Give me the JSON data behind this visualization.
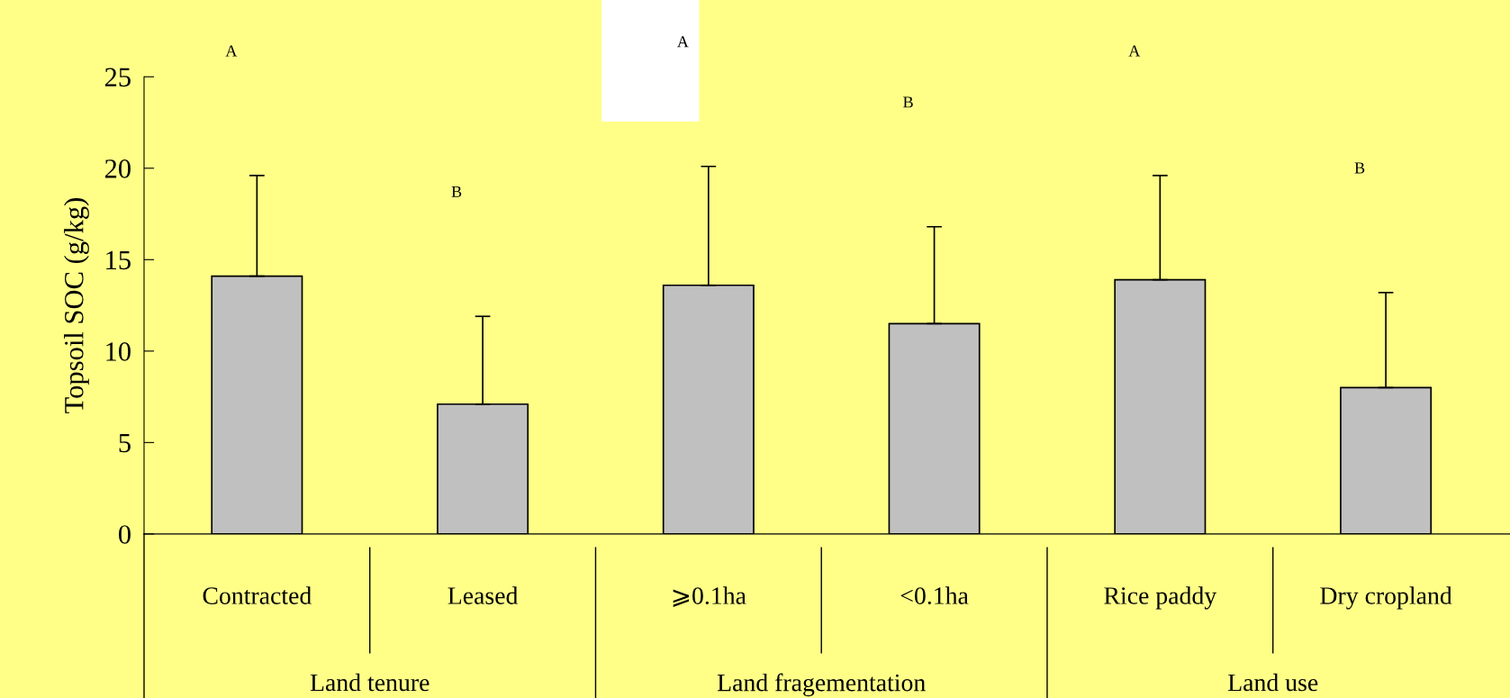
{
  "chart_data": {
    "type": "bar",
    "ylabel": "Topsoil SOC (g/kg)",
    "categories": [
      "Contracted",
      "Leased",
      "⩾0.1ha",
      "<0.1ha",
      "Rice paddy",
      "Dry cropland"
    ],
    "values": [
      14.1,
      7.1,
      13.6,
      11.5,
      13.9,
      8.0
    ],
    "errors": [
      [
        14.1,
        19.6
      ],
      [
        7.1,
        11.9
      ],
      [
        13.6,
        20.1
      ],
      [
        11.5,
        16.8
      ],
      [
        13.9,
        19.6
      ],
      [
        8.0,
        13.2
      ]
    ],
    "color": "#c0c0c0",
    "ylim": [
      0,
      25
    ],
    "yticks": [
      0,
      5,
      10,
      15,
      20,
      25
    ],
    "grid": false,
    "legend": false,
    "annotations": [
      "A",
      "B",
      "A",
      "B",
      "A",
      "B",
      "Land tenure",
      "Land fragementation",
      "Land use"
    ]
  }
}
